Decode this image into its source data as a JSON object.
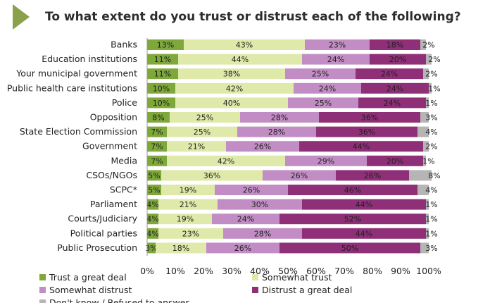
{
  "title": "To what extent do you trust or distrust each of the following?",
  "colors": {
    "accent": "#8aa04a",
    "trust_great": "#7ea83a",
    "somewhat_trust": "#dfe9a9",
    "somewhat_distrust": "#c28dc4",
    "distrust_great": "#8e2f77",
    "dont_know": "#b5b5b5"
  },
  "chart_data": {
    "type": "bar",
    "orientation": "horizontal",
    "stacked": true,
    "title": "To what extent do you trust or distrust each of the following?",
    "categories": [
      "Banks",
      "Education institutions",
      "Your municipal government",
      "Public health care institutions",
      "Police",
      "Opposition",
      "State Election Commission",
      "Government",
      "Media",
      "CSOs/NGOs",
      "SCPC*",
      "Parliament",
      "Courts/Judiciary",
      "Political parties",
      "Public Prosecution"
    ],
    "series": [
      {
        "name": "Trust a great deal",
        "color": "#7ea83a",
        "values": [
          13,
          11,
          11,
          10,
          10,
          8,
          7,
          7,
          7,
          5,
          5,
          4,
          4,
          4,
          3
        ]
      },
      {
        "name": "Somewhat trust",
        "color": "#dfe9a9",
        "values": [
          43,
          44,
          38,
          42,
          40,
          25,
          25,
          21,
          42,
          36,
          19,
          21,
          19,
          23,
          18
        ]
      },
      {
        "name": "Somewhat distrust",
        "color": "#c28dc4",
        "values": [
          23,
          24,
          25,
          24,
          25,
          28,
          28,
          26,
          29,
          26,
          26,
          30,
          24,
          28,
          26
        ]
      },
      {
        "name": "Distrust a great deal",
        "color": "#8e2f77",
        "values": [
          18,
          20,
          24,
          24,
          24,
          36,
          36,
          44,
          20,
          26,
          46,
          44,
          52,
          44,
          50
        ]
      },
      {
        "name": "Don't know / Refused to answer",
        "color": "#b5b5b5",
        "values": [
          2,
          2,
          2,
          1,
          1,
          3,
          4,
          2,
          1,
          8,
          4,
          1,
          1,
          1,
          3
        ]
      }
    ],
    "label_suffix": "%",
    "xlim": [
      0,
      100
    ],
    "xticks": [
      "0%",
      "10%",
      "20%",
      "30%",
      "40%",
      "50%",
      "60%",
      "70%",
      "80%",
      "90%",
      "100%"
    ],
    "legend": {
      "position": "bottom",
      "items": [
        "Trust a great deal",
        "Somewhat trust",
        "Somewhat distrust",
        "Distrust a great deal",
        "Don't know / Refused to answer"
      ]
    }
  }
}
